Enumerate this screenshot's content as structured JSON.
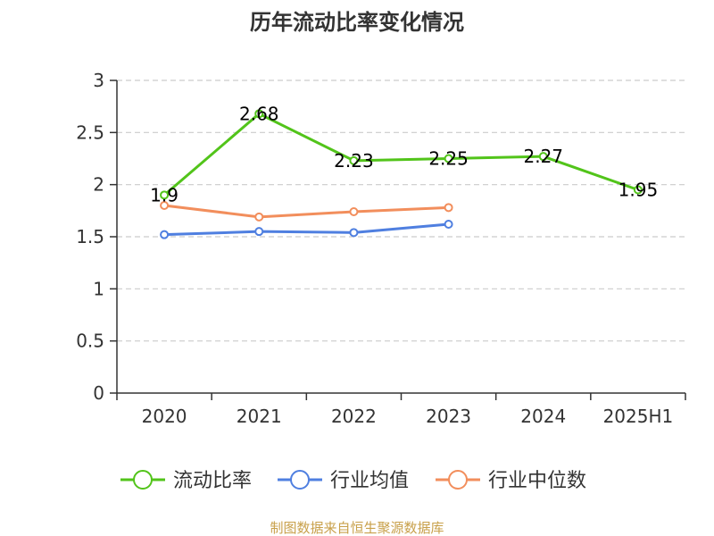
{
  "chart_data": {
    "type": "line",
    "title": "历年流动比率变化情况",
    "categories": [
      "2020",
      "2021",
      "2022",
      "2023",
      "2024",
      "2025H1"
    ],
    "ylim": [
      0,
      3
    ],
    "yticks": [
      0,
      0.5,
      1,
      1.5,
      2,
      2.5,
      3
    ],
    "ytick_labels": [
      "0",
      "0.5",
      "1",
      "1.5",
      "2",
      "2.5",
      "3"
    ],
    "grid": true,
    "legend_position": "bottom",
    "series": [
      {
        "name": "流动比率",
        "color": "#52c41a",
        "values": [
          1.9,
          2.68,
          2.23,
          2.25,
          2.27,
          1.95
        ],
        "labels": [
          "1.9",
          "2.68",
          "2.23",
          "2.25",
          "2.27",
          "1.95"
        ]
      },
      {
        "name": "行业均值",
        "color": "#4f7fe0",
        "values": [
          1.52,
          1.55,
          1.54,
          1.62,
          null,
          null
        ]
      },
      {
        "name": "行业中位数",
        "color": "#f28e5c",
        "values": [
          1.8,
          1.69,
          1.74,
          1.78,
          null,
          null
        ]
      }
    ]
  },
  "source": "制图数据来自恒生聚源数据库"
}
